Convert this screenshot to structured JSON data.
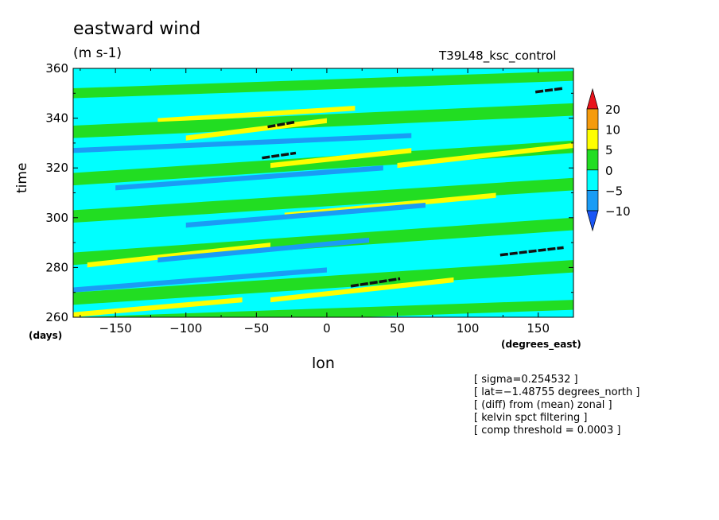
{
  "chart_data": {
    "type": "heatmap",
    "title": "eastward wind",
    "units": "(m s-1)",
    "run_label": "T39L48_ksc_control",
    "xlabel": "lon",
    "ylabel": "time",
    "x_unit": "(degrees_east)",
    "y_unit": "(days)",
    "xlim": [
      -180,
      175
    ],
    "ylim": [
      260,
      360
    ],
    "x_ticks": [
      "−150",
      "−100",
      "−50",
      "0",
      "50",
      "100",
      "150"
    ],
    "x_tick_values": [
      -150,
      -100,
      -50,
      0,
      50,
      100,
      150
    ],
    "y_ticks": [
      "260",
      "280",
      "300",
      "320",
      "340",
      "360"
    ],
    "y_tick_values": [
      260,
      280,
      300,
      320,
      340,
      360
    ],
    "colorbar": {
      "labels": [
        "20",
        "10",
        "5",
        "0",
        "−5",
        "−10"
      ],
      "levels": [
        20,
        10,
        5,
        0,
        -5,
        -10
      ],
      "colors": [
        "#e8131b",
        "#f59b0d",
        "#fefe00",
        "#22dd22",
        "#00ffff",
        "#1a9cf5",
        "#1a56f5"
      ]
    },
    "bands": [
      {
        "color": "#22dd22",
        "x0": -180,
        "y0": 352,
        "x1": 175,
        "y1": 359,
        "w": 4
      },
      {
        "color": "#fefe00",
        "x0": -120,
        "y0": 340,
        "x1": 20,
        "y1": 345,
        "w": 2
      },
      {
        "color": "#22dd22",
        "x0": -180,
        "y0": 337,
        "x1": 175,
        "y1": 346,
        "w": 5
      },
      {
        "color": "#fefe00",
        "x0": -100,
        "y0": 333,
        "x1": 0,
        "y1": 340,
        "w": 2
      },
      {
        "color": "#1a9cf5",
        "x0": -180,
        "y0": 328,
        "x1": 60,
        "y1": 334,
        "w": 2
      },
      {
        "color": "#22dd22",
        "x0": -180,
        "y0": 318,
        "x1": 175,
        "y1": 331,
        "w": 5
      },
      {
        "color": "#fefe00",
        "x0": 50,
        "y0": 322,
        "x1": 175,
        "y1": 330,
        "w": 2
      },
      {
        "color": "#fefe00",
        "x0": -40,
        "y0": 322,
        "x1": 60,
        "y1": 328,
        "w": 2
      },
      {
        "color": "#1a9cf5",
        "x0": -150,
        "y0": 313,
        "x1": 40,
        "y1": 321,
        "w": 2
      },
      {
        "color": "#22dd22",
        "x0": -180,
        "y0": 303,
        "x1": 175,
        "y1": 316,
        "w": 5
      },
      {
        "color": "#fefe00",
        "x0": -30,
        "y0": 302,
        "x1": 120,
        "y1": 310,
        "w": 2
      },
      {
        "color": "#1a9cf5",
        "x0": -100,
        "y0": 298,
        "x1": 70,
        "y1": 306,
        "w": 2
      },
      {
        "color": "#22dd22",
        "x0": -180,
        "y0": 286,
        "x1": 175,
        "y1": 300,
        "w": 5
      },
      {
        "color": "#fefe00",
        "x0": -170,
        "y0": 282,
        "x1": -40,
        "y1": 290,
        "w": 2
      },
      {
        "color": "#1a9cf5",
        "x0": -120,
        "y0": 284,
        "x1": 30,
        "y1": 292,
        "w": 2
      },
      {
        "color": "#22dd22",
        "x0": -180,
        "y0": 270,
        "x1": 175,
        "y1": 283,
        "w": 5
      },
      {
        "color": "#fefe00",
        "x0": -40,
        "y0": 268,
        "x1": 90,
        "y1": 276,
        "w": 2
      },
      {
        "color": "#1a9cf5",
        "x0": -180,
        "y0": 272,
        "x1": 0,
        "y1": 280,
        "w": 2
      },
      {
        "color": "#22dd22",
        "x0": -180,
        "y0": 260,
        "x1": 175,
        "y1": 267,
        "w": 4
      },
      {
        "color": "#fefe00",
        "x0": -180,
        "y0": 262,
        "x1": -60,
        "y1": 268,
        "w": 2
      }
    ],
    "segments": [
      {
        "x0": -42,
        "y0": 336.5,
        "x1": -22,
        "y1": 338.5
      },
      {
        "x0": -46,
        "y0": 324,
        "x1": -22,
        "y1": 326
      },
      {
        "x0": 17,
        "y0": 272.5,
        "x1": 52,
        "y1": 275.5
      },
      {
        "x0": 123,
        "y0": 285,
        "x1": 168,
        "y1": 288
      },
      {
        "x0": 148,
        "y0": 350.5,
        "x1": 168,
        "y1": 352
      }
    ]
  },
  "notes": [
    "[ sigma=0.254532 ]",
    "[ lat=−1.48755 degrees_north ]",
    "[ (diff) from (mean) zonal ]",
    "[ kelvin spct filtering ]",
    "[ comp threshold = 0.0003 ]"
  ]
}
